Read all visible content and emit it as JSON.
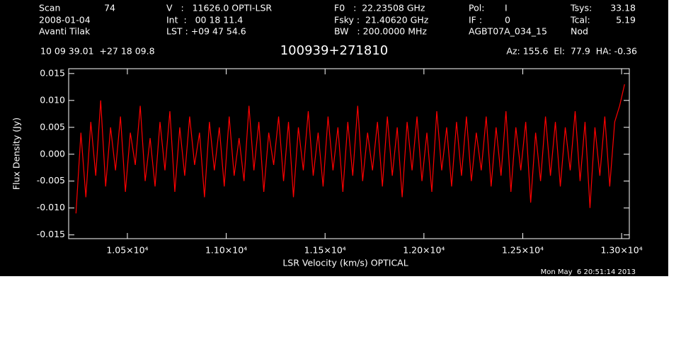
{
  "chart_data": {
    "type": "line",
    "title": "100939+271810",
    "annotations": [
      "Scan",
      "74",
      "2008-01-04",
      "Avanti Tilak",
      "V   :   11626.0 OPTI-LSR",
      "Int  :   00 18 11.4",
      "LST : +09 47 54.6",
      "F0   :  22.23508 GHz",
      "Fsky :  21.40620 GHz",
      "BW   : 200.0000 MHz",
      "Pol:",
      "I",
      "IF :",
      "0",
      "AGBT07A_034_15",
      "Tsys:",
      "33.18",
      "Tcal:",
      "5.19",
      "Nod",
      "10 09 39.01  +27 18 09.8",
      "Az: 155.6  El:  77.9  HA: -0.36",
      "Mon May  6 20:51:14 2013"
    ],
    "x_label": "LSR Velocity (km/s) OPTICAL",
    "y_label": "Flux Density (Jy)",
    "color": "#ff0000",
    "xlim": [
      10203,
      13039
    ],
    "ylim": [
      -0.0157,
      0.0159
    ],
    "xticks": [
      {
        "value": 10500,
        "label": "1.05×10⁴"
      },
      {
        "value": 11000,
        "label": "1.10×10⁴"
      },
      {
        "value": 11500,
        "label": "1.15×10⁴"
      },
      {
        "value": 12000,
        "label": "1.20×10⁴"
      },
      {
        "value": 12500,
        "label": "1.25×10⁴"
      },
      {
        "value": 13000,
        "label": "1.30×10⁴"
      }
    ],
    "yticks": [
      -0.015,
      {
        "value": -0.01,
        "label": "-0.010"
      },
      -0.005,
      {
        "value": 0,
        "label": "0.000"
      },
      0.005,
      {
        "value": 0.01,
        "label": "0.010"
      },
      0.015
    ],
    "x": [
      10240,
      10265,
      10290,
      10315,
      10340,
      10365,
      10390,
      10415,
      10440,
      10465,
      10490,
      10515,
      10540,
      10565,
      10590,
      10615,
      10640,
      10665,
      10690,
      10715,
      10740,
      10765,
      10790,
      10815,
      10840,
      10865,
      10890,
      10915,
      10940,
      10965,
      10990,
      11015,
      11040,
      11065,
      11090,
      11115,
      11140,
      11165,
      11190,
      11215,
      11240,
      11265,
      11290,
      11315,
      11340,
      11365,
      11390,
      11415,
      11440,
      11465,
      11490,
      11515,
      11540,
      11565,
      11590,
      11615,
      11640,
      11665,
      11690,
      11715,
      11740,
      11765,
      11790,
      11815,
      11840,
      11865,
      11890,
      11915,
      11940,
      11965,
      11990,
      12015,
      12040,
      12065,
      12090,
      12115,
      12140,
      12165,
      12190,
      12215,
      12240,
      12265,
      12290,
      12315,
      12340,
      12365,
      12390,
      12415,
      12440,
      12465,
      12490,
      12515,
      12540,
      12565,
      12590,
      12615,
      12640,
      12665,
      12690,
      12715,
      12740,
      12765,
      12790,
      12815,
      12840,
      12865,
      12890,
      12915,
      12940,
      12965,
      12990,
      13015
    ],
    "values": [
      -0.011,
      0.004,
      -0.008,
      0.006,
      -0.004,
      0.01,
      -0.006,
      0.005,
      -0.003,
      0.007,
      -0.007,
      0.004,
      -0.002,
      0.009,
      -0.005,
      0.003,
      -0.006,
      0.006,
      -0.003,
      0.008,
      -0.007,
      0.005,
      -0.004,
      0.007,
      -0.002,
      0.004,
      -0.008,
      0.006,
      -0.003,
      0.005,
      -0.006,
      0.007,
      -0.004,
      0.003,
      -0.005,
      0.009,
      -0.003,
      0.006,
      -0.007,
      0.004,
      -0.002,
      0.007,
      -0.005,
      0.006,
      -0.008,
      0.005,
      -0.003,
      0.008,
      -0.004,
      0.004,
      -0.006,
      0.007,
      -0.003,
      0.005,
      -0.007,
      0.006,
      -0.004,
      0.009,
      -0.005,
      0.004,
      -0.003,
      0.006,
      -0.006,
      0.007,
      -0.004,
      0.005,
      -0.008,
      0.006,
      -0.003,
      0.007,
      -0.005,
      0.004,
      -0.007,
      0.008,
      -0.003,
      0.005,
      -0.006,
      0.006,
      -0.004,
      0.007,
      -0.005,
      0.004,
      -0.003,
      0.007,
      -0.006,
      0.005,
      -0.004,
      0.008,
      -0.007,
      0.005,
      -0.003,
      0.006,
      -0.009,
      0.004,
      -0.005,
      0.007,
      -0.004,
      0.006,
      -0.006,
      0.005,
      -0.003,
      0.008,
      -0.005,
      0.006,
      -0.01,
      0.005,
      -0.004,
      0.007,
      -0.006,
      0.006,
      0.009,
      0.013
    ]
  }
}
